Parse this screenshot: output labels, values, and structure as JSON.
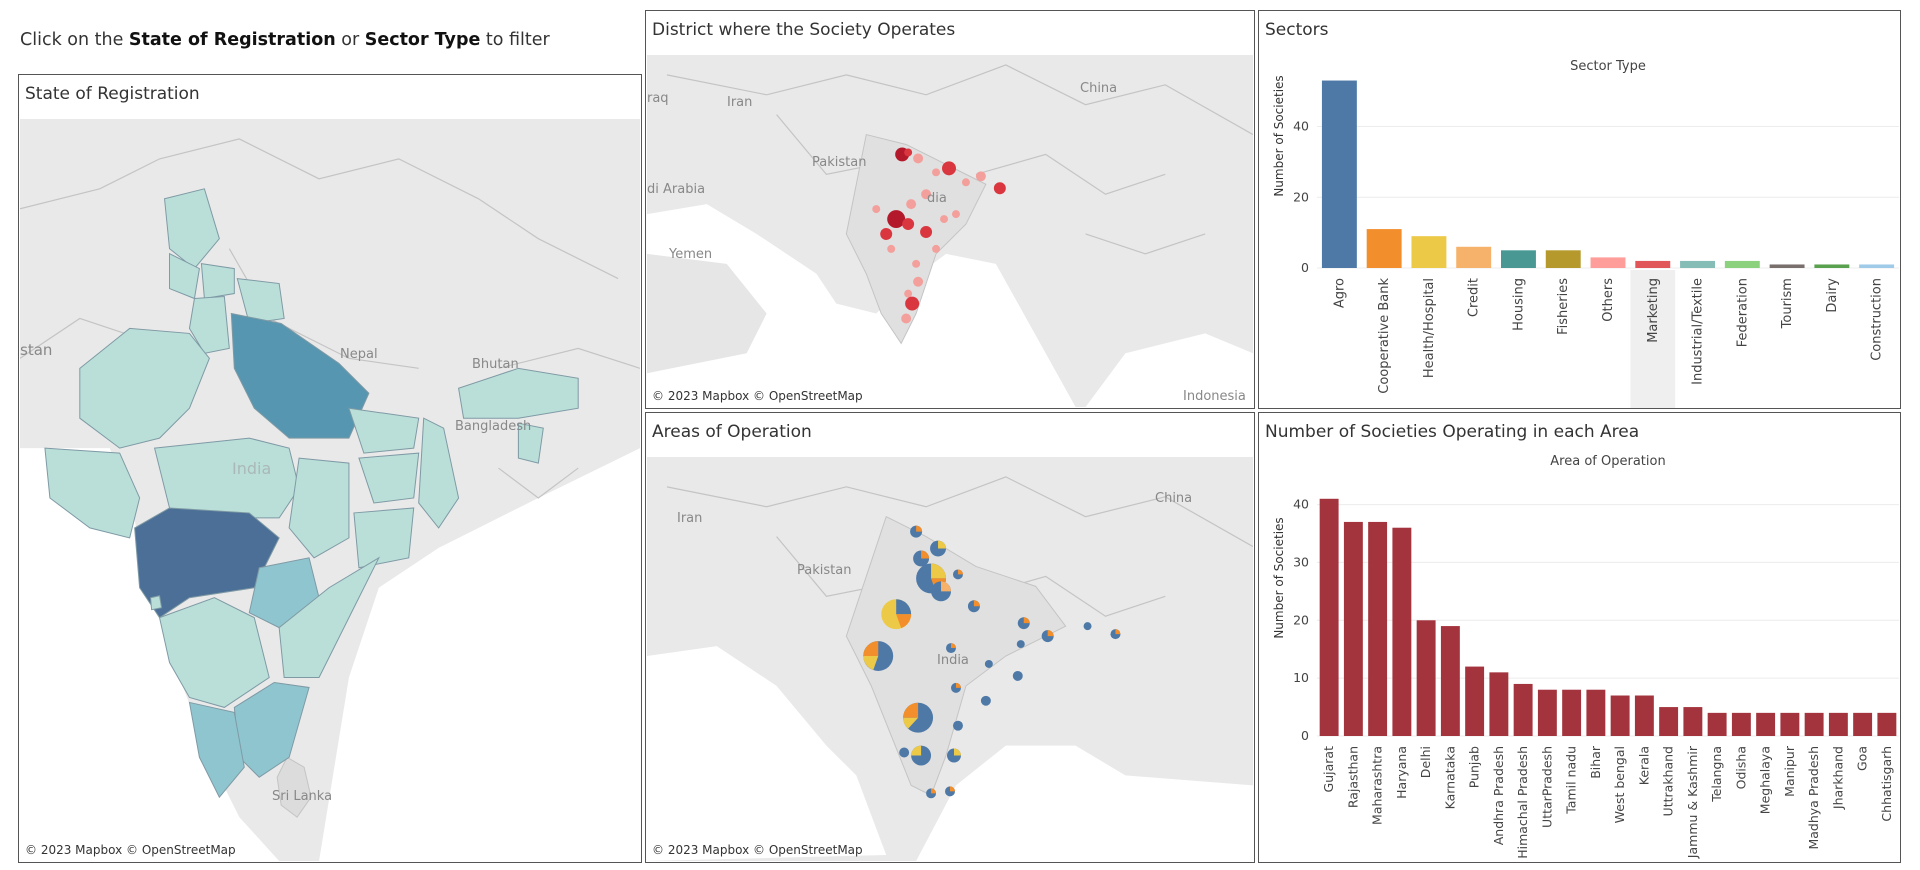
{
  "instruction": {
    "prefix": "Click on the ",
    "term1": "State of Registration",
    "middle": " or ",
    "term2": "Sector Type",
    "suffix": " to filter"
  },
  "colors": {
    "border": "#555555",
    "map_land": "#e6e6e6",
    "map_water": "#ffffff",
    "map_line": "#c4c4c4",
    "state_low": "#b9dfd8",
    "state_mid": "#8ec5cf",
    "state_high": "#5796b0",
    "state_top": "#4b6f96",
    "bubble_dark": "#b3182b",
    "bubble_mid": "#d9363f",
    "bubble_light": "#f3a09c",
    "area_bar": "#a3343d"
  },
  "panels": {
    "state": {
      "title": "State of Registration",
      "credit": "© 2023 Mapbox  © OpenStreetMap",
      "labels": [
        "India",
        "Nepal",
        "Bhutan",
        "Bangladesh",
        "Sri Lanka",
        "stan"
      ]
    },
    "district": {
      "title": "District where the Society Operates",
      "credit": "© 2023 Mapbox  © OpenStreetMap",
      "labels": [
        "China",
        "Iran",
        "Pakistan",
        "di Arabia",
        "Yemen",
        "raq",
        "dia",
        "Indonesia"
      ]
    },
    "areas": {
      "title": "Areas of Operation",
      "credit": "© 2023 Mapbox  © OpenStreetMap",
      "labels": [
        "China",
        "Iran",
        "Pakistan",
        "India"
      ]
    },
    "sectors": {
      "title": "Sectors"
    },
    "operating": {
      "title": "Number of Societies Operating in each Area"
    }
  },
  "chart_data": [
    {
      "type": "bar",
      "title": "Sector Type",
      "ylabel": "Number of Societies",
      "ylim": [
        0,
        54
      ],
      "yticks": [
        0,
        20,
        40
      ],
      "grid": true,
      "highlighted_category": "Marketing",
      "categories": [
        "Agro",
        "Cooperative Bank",
        "Health/Hospital",
        "Credit",
        "Housing",
        "Fisheries",
        "Others",
        "Marketing",
        "Industrial/Textile",
        "Federation",
        "Tourism",
        "Dairy",
        "Construction"
      ],
      "values": [
        53,
        11,
        9,
        6,
        5,
        5,
        3,
        2,
        2,
        2,
        1,
        1,
        1
      ],
      "bar_colors": [
        "#4e79a7",
        "#f28e2b",
        "#edc948",
        "#f6b26b",
        "#499894",
        "#b6992d",
        "#ff9d9a",
        "#e15759",
        "#86bcb6",
        "#8cd17d",
        "#79706e",
        "#59a14f",
        "#a0cbe8"
      ]
    },
    {
      "type": "bar",
      "title": "Area of Operation",
      "ylabel": "Number of Societies",
      "ylim": [
        0,
        42
      ],
      "yticks": [
        0,
        10,
        20,
        30,
        40
      ],
      "grid": true,
      "categories": [
        "Gujarat",
        "Rajasthan",
        "Maharashtra",
        "Haryana",
        "Delhi",
        "Karnataka",
        "Punjab",
        "Andhra Pradesh",
        "Himachal Pradesh",
        "UttarPradesh",
        "Tamil nadu",
        "Bihar",
        "West bengal",
        "Kerala",
        "Uttrakhand",
        "Jammu & Kashmir",
        "Telangna",
        "Odisha",
        "Meghalaya",
        "Manipur",
        "Madhya Pradesh",
        "Jharkhand",
        "Goa",
        "Chhatisgarh"
      ],
      "values": [
        41,
        37,
        37,
        36,
        20,
        19,
        12,
        11,
        9,
        8,
        8,
        8,
        7,
        7,
        5,
        5,
        4,
        4,
        4,
        4,
        4,
        4,
        4,
        4
      ]
    }
  ]
}
